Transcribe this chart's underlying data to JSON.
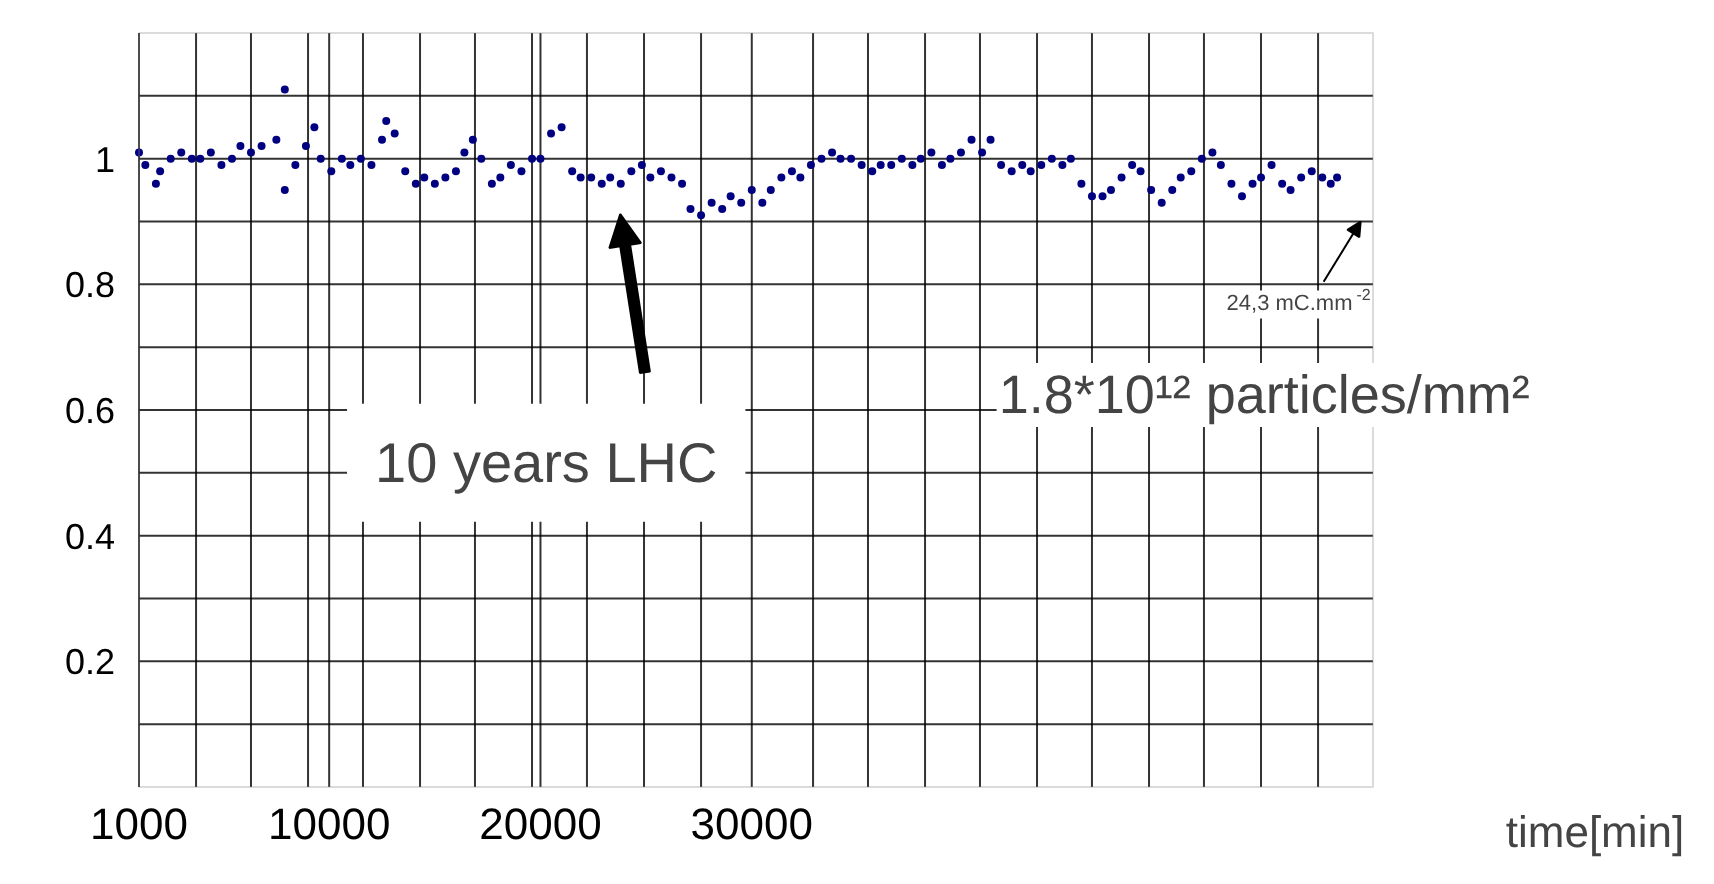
{
  "chart_data": {
    "type": "scatter",
    "xlabel": "time[min]",
    "marker": "circle",
    "grid": true,
    "xlim": [
      1000,
      59400
    ],
    "ylim": [
      0,
      1.2
    ],
    "xticks": [
      1000,
      10000,
      20000,
      30000,
      {
        "value": 3700,
        "label": null
      },
      {
        "value": 6300,
        "label": null
      },
      {
        "value": 9000,
        "label": null
      },
      {
        "value": 11600,
        "label": null
      },
      {
        "value": 14300,
        "label": null
      },
      {
        "value": 16900,
        "label": null
      },
      {
        "value": 19600,
        "label": null
      },
      {
        "value": 22200,
        "label": null
      },
      {
        "value": 24900,
        "label": null
      },
      {
        "value": 27600,
        "label": null
      },
      {
        "value": 32900,
        "label": null
      },
      {
        "value": 35500,
        "label": null
      },
      {
        "value": 38200,
        "label": null
      },
      {
        "value": 40800,
        "label": null
      },
      {
        "value": 43500,
        "label": null
      },
      {
        "value": 46100,
        "label": null
      },
      {
        "value": 48800,
        "label": null
      },
      {
        "value": 51400,
        "label": null
      },
      {
        "value": 54100,
        "label": null
      },
      {
        "value": 56800,
        "label": null
      }
    ],
    "yticks": [
      0.2,
      0.4,
      0.6,
      0.8,
      1,
      {
        "value": 0.1,
        "label": null
      },
      {
        "value": 0.3,
        "label": null
      },
      {
        "value": 0.5,
        "label": null
      },
      {
        "value": 0.7,
        "label": null
      },
      {
        "value": 0.9,
        "label": null
      },
      {
        "value": 1.1,
        "label": null
      }
    ],
    "annotations": [
      "10 years LHC",
      "24,3 mC.mm$^{-2}$",
      "1.8*10¹² particles/mm²"
    ],
    "series": [
      {
        "color": "#000080",
        "x": [
          1000,
          1300,
          1800,
          2000,
          2500,
          3000,
          3500,
          3900,
          4400,
          4900,
          5400,
          5800,
          6300,
          6800,
          7500,
          7900,
          7900,
          8400,
          8900,
          9300,
          9600,
          10100,
          10600,
          11000,
          11500,
          12000,
          12500,
          12700,
          13100,
          13600,
          14100,
          14500,
          15000,
          15500,
          16000,
          16400,
          16800,
          17200,
          17700,
          18100,
          18600,
          19100,
          19600,
          20000,
          20500,
          21000,
          21500,
          21900,
          22400,
          22900,
          23300,
          23800,
          24300,
          24800,
          25200,
          25700,
          26200,
          26700,
          27100,
          27600,
          28100,
          28600,
          29000,
          29500,
          30000,
          30500,
          30900,
          31400,
          31900,
          32300,
          32800,
          33300,
          33800,
          34200,
          34700,
          35200,
          35700,
          36100,
          36600,
          37100,
          37600,
          38000,
          38500,
          39000,
          39400,
          39900,
          40400,
          40900,
          41300,
          41800,
          42300,
          42800,
          43200,
          43700,
          44200,
          44700,
          45100,
          45600,
          46100,
          46600,
          47000,
          47500,
          48000,
          48400,
          48900,
          49400,
          49900,
          50300,
          50800,
          51300,
          51800,
          52200,
          52700,
          53200,
          53700,
          54100,
          54600,
          55100,
          55500,
          56000,
          56500,
          57000,
          57400,
          57700
        ],
        "values": [
          1.01,
          0.99,
          0.96,
          0.98,
          1.0,
          1.01,
          1.0,
          1.0,
          1.01,
          0.99,
          1.0,
          1.02,
          1.01,
          1.02,
          1.03,
          0.95,
          1.11,
          0.99,
          1.02,
          1.05,
          1.0,
          0.98,
          1.0,
          0.99,
          1.0,
          0.99,
          1.03,
          1.06,
          1.04,
          0.98,
          0.96,
          0.97,
          0.96,
          0.97,
          0.98,
          1.01,
          1.03,
          1.0,
          0.96,
          0.97,
          0.99,
          0.98,
          1.0,
          1.0,
          1.04,
          1.05,
          0.98,
          0.97,
          0.97,
          0.96,
          0.97,
          0.96,
          0.98,
          0.99,
          0.97,
          0.98,
          0.97,
          0.96,
          0.92,
          0.91,
          0.93,
          0.92,
          0.94,
          0.93,
          0.95,
          0.93,
          0.95,
          0.97,
          0.98,
          0.97,
          0.99,
          1.0,
          1.01,
          1.0,
          1.0,
          0.99,
          0.98,
          0.99,
          0.99,
          1.0,
          0.99,
          1.0,
          1.01,
          0.99,
          1.0,
          1.01,
          1.03,
          1.01,
          1.03,
          0.99,
          0.98,
          0.99,
          0.98,
          0.99,
          1.0,
          0.99,
          1.0,
          0.96,
          0.94,
          0.94,
          0.95,
          0.97,
          0.99,
          0.98,
          0.95,
          0.93,
          0.95,
          0.97,
          0.98,
          1.0,
          1.01,
          0.99,
          0.96,
          0.94,
          0.96,
          0.97,
          0.99,
          0.96,
          0.95,
          0.97,
          0.98,
          0.97,
          0.96,
          0.97
        ]
      }
    ]
  }
}
